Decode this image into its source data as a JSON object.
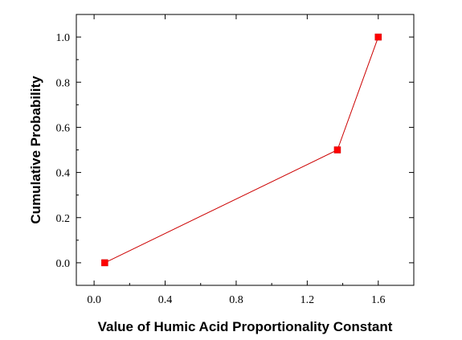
{
  "chart_data": {
    "type": "line",
    "title": "",
    "xlabel": "Value of Humic Acid Proportionality Constant",
    "ylabel": "Cumulative Probability",
    "xlim": [
      -0.1,
      1.8
    ],
    "ylim": [
      -0.1,
      1.1
    ],
    "xticks": [
      0.0,
      0.4,
      0.8,
      1.2,
      1.6
    ],
    "yticks": [
      0.0,
      0.2,
      0.4,
      0.6,
      0.8,
      1.0
    ],
    "xtick_labels": [
      "0.0",
      "0.4",
      "0.8",
      "1.2",
      "1.6"
    ],
    "ytick_labels": [
      "0.0",
      "0.2",
      "0.4",
      "0.6",
      "0.8",
      "1.0"
    ],
    "grid": false,
    "legend": "none",
    "series": [
      {
        "x": [
          0.06,
          1.37,
          1.6
        ],
        "y": [
          0.0,
          0.5,
          1.0
        ],
        "line_color": "#cc0000",
        "marker": "square",
        "marker_color": "#ff0000"
      }
    ]
  }
}
